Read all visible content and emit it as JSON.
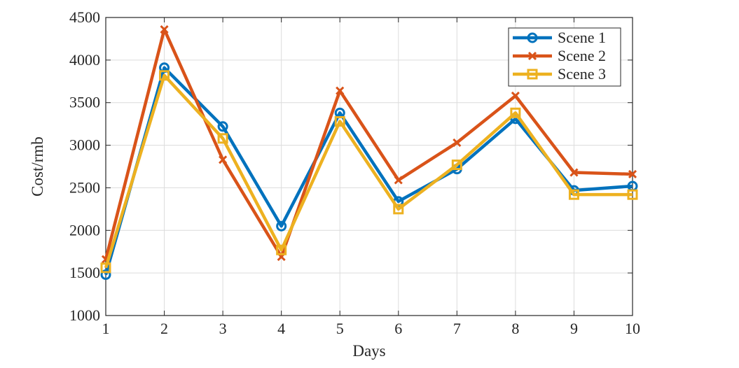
{
  "chart_data": {
    "type": "line",
    "xlabel": "Days",
    "ylabel": "Cost/rmb",
    "x": [
      1,
      2,
      3,
      4,
      5,
      6,
      7,
      8,
      9,
      10
    ],
    "xlim": [
      1,
      10
    ],
    "ylim": [
      1000,
      4500
    ],
    "yticks": [
      1000,
      1500,
      2000,
      2500,
      3000,
      3500,
      4000,
      4500
    ],
    "grid": true,
    "legend": "top-right",
    "series": [
      {
        "name": "Scene 1",
        "color": "#0072BD",
        "marker": "circle",
        "values": [
          1480,
          3910,
          3220,
          2050,
          3380,
          2340,
          2720,
          3310,
          2470,
          2520
        ]
      },
      {
        "name": "Scene 2",
        "color": "#D95319",
        "marker": "x",
        "values": [
          1660,
          4360,
          2830,
          1690,
          3640,
          2590,
          3030,
          3580,
          2680,
          2660
        ]
      },
      {
        "name": "Scene 3",
        "color": "#EDB120",
        "marker": "square",
        "values": [
          1560,
          3820,
          3080,
          1770,
          3280,
          2250,
          2770,
          3380,
          2420,
          2420
        ]
      }
    ]
  }
}
